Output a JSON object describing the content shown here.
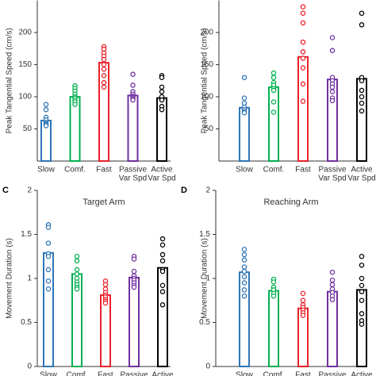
{
  "chart_data": [
    {
      "type": "bar",
      "ylabel": "Peak Tangential Speed (cm/s)",
      "categories": [
        [
          "Slow"
        ],
        [
          "Comf."
        ],
        [
          "Fast"
        ],
        [
          "Passive",
          "Var Spd"
        ],
        [
          "Active",
          "Var Spd"
        ]
      ],
      "values": [
        63,
        100,
        153,
        102,
        98
      ],
      "colors": [
        "#2e75b6",
        "#00b050",
        "#e8202a",
        "#7030a0",
        "#000000"
      ],
      "points": [
        [
          88,
          80,
          68,
          64,
          60,
          58,
          56,
          55
        ],
        [
          117,
          113,
          109,
          104,
          100,
          98,
          95,
          92,
          88
        ],
        [
          178,
          174,
          168,
          163,
          158,
          150,
          143,
          133,
          122,
          115
        ],
        [
          135,
          118,
          108,
          104,
          101,
          99,
          97,
          95
        ],
        [
          133,
          130,
          115,
          108,
          100,
          95,
          85,
          80
        ]
      ],
      "ylim": [
        0,
        250
      ],
      "yticks": [
        50,
        100,
        150,
        200
      ]
    },
    {
      "type": "bar",
      "ylabel": "Peak Tangential Speed (cm/s)",
      "categories": [
        [
          "Slow"
        ],
        [
          "Comf."
        ],
        [
          "Fast"
        ],
        [
          "Passive",
          "Var Spd"
        ],
        [
          "Active",
          "Var Spd"
        ]
      ],
      "values": [
        83,
        115,
        162,
        127,
        128
      ],
      "colors": [
        "#2e75b6",
        "#00b050",
        "#e8202a",
        "#7030a0",
        "#000000"
      ],
      "points": [
        [
          130,
          98,
          90,
          84,
          80,
          77,
          75
        ],
        [
          137,
          130,
          122,
          118,
          113,
          110,
          92,
          76
        ],
        [
          240,
          230,
          215,
          185,
          170,
          160,
          145,
          120,
          93
        ],
        [
          192,
          172,
          130,
          125,
          120,
          115,
          108,
          98,
          94
        ],
        [
          230,
          212,
          130,
          125,
          110,
          100,
          90,
          78
        ]
      ],
      "ylim": [
        0,
        250
      ],
      "yticks": [
        50,
        100,
        150,
        200
      ]
    },
    {
      "type": "bar",
      "panel_label": "C",
      "title": "Target Arm",
      "ylabel": "Movement Duration (s)",
      "categories": [
        [
          "Slow"
        ],
        [
          "Comf."
        ],
        [
          "Fast"
        ],
        [
          "Passive"
        ],
        [
          "Active"
        ]
      ],
      "values": [
        1.29,
        1.05,
        0.81,
        1.01,
        1.12
      ],
      "colors": [
        "#2e75b6",
        "#00b050",
        "#e8202a",
        "#7030a0",
        "#000000"
      ],
      "points": [
        [
          1.61,
          1.58,
          1.4,
          1.28,
          1.25,
          1.1,
          0.97,
          0.88
        ],
        [
          1.25,
          1.2,
          1.1,
          1.05,
          1.0,
          0.96,
          0.93,
          0.9,
          0.88
        ],
        [
          0.97,
          0.93,
          0.88,
          0.84,
          0.81,
          0.79,
          0.76,
          0.74,
          0.72
        ],
        [
          1.25,
          1.22,
          1.08,
          1.03,
          1.0,
          0.98,
          0.95,
          0.92,
          0.9
        ],
        [
          1.45,
          1.38,
          1.27,
          1.2,
          1.1,
          1.08,
          0.92,
          0.85,
          0.7
        ]
      ],
      "ylim": [
        0,
        2
      ],
      "yticks": [
        0,
        0.5,
        1,
        1.5,
        2
      ]
    },
    {
      "type": "bar",
      "panel_label": "D",
      "title": "Reaching Arm",
      "ylabel": "Movement Duration (s)",
      "categories": [
        [
          "Slow"
        ],
        [
          "Comf."
        ],
        [
          "Fast"
        ],
        [
          "Passive"
        ],
        [
          "Active"
        ]
      ],
      "values": [
        1.07,
        0.86,
        0.66,
        0.85,
        0.87
      ],
      "colors": [
        "#2e75b6",
        "#00b050",
        "#e8202a",
        "#7030a0",
        "#000000"
      ],
      "points": [
        [
          1.33,
          1.27,
          1.21,
          1.13,
          1.08,
          1.02,
          0.95,
          0.87,
          0.8
        ],
        [
          0.99,
          0.96,
          0.9,
          0.87,
          0.83,
          0.8
        ],
        [
          0.83,
          0.75,
          0.7,
          0.67,
          0.64,
          0.61,
          0.58
        ],
        [
          1.07,
          0.98,
          0.93,
          0.88,
          0.84,
          0.8,
          0.76
        ],
        [
          1.25,
          1.15,
          1.0,
          0.92,
          0.85,
          0.75,
          0.6,
          0.52,
          0.48
        ]
      ],
      "ylim": [
        0,
        2
      ],
      "yticks": [
        0,
        0.5,
        1,
        1.5,
        2
      ]
    }
  ]
}
